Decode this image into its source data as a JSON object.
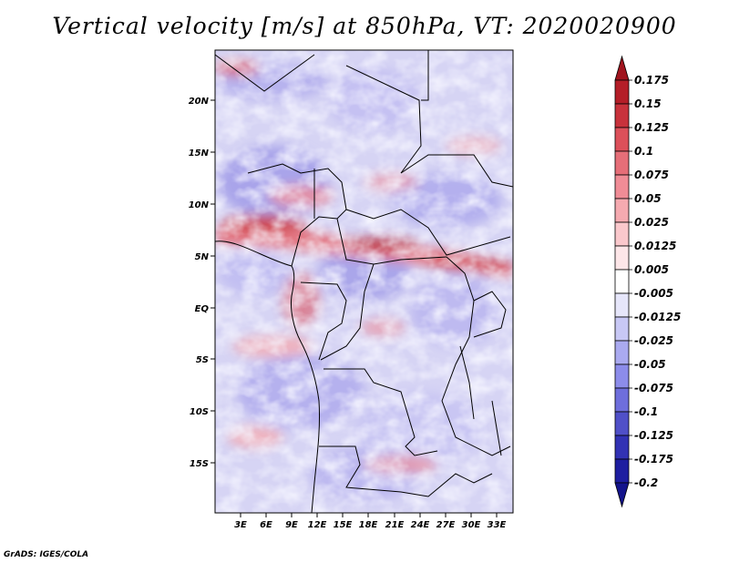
{
  "title": "Vertical velocity [m/s] at 850hPa, VT: 2020020900",
  "credit": "GrADS: IGES/COLA",
  "map": {
    "lon_labels": [
      "3E",
      "6E",
      "9E",
      "12E",
      "15E",
      "18E",
      "21E",
      "24E",
      "27E",
      "30E",
      "33E"
    ],
    "lat_labels": [
      "20N",
      "15N",
      "10N",
      "5N",
      "EQ",
      "5S",
      "10S",
      "15S"
    ]
  },
  "colorbar": {
    "labels": [
      "0.175",
      "0.15",
      "0.125",
      "0.1",
      "0.075",
      "0.05",
      "0.025",
      "0.0125",
      "0.005",
      "-0.005",
      "-0.0125",
      "-0.025",
      "-0.05",
      "-0.075",
      "-0.1",
      "-0.125",
      "-0.175",
      "-0.2"
    ],
    "colors": [
      "#a0141e",
      "#b41e28",
      "#c8323c",
      "#dc505a",
      "#e66e78",
      "#f08c96",
      "#f5aab0",
      "#fac8cc",
      "#fde6e8",
      "#ffffff",
      "#e6e6fa",
      "#c8c8f5",
      "#aaaaf0",
      "#8c8cea",
      "#6e6edc",
      "#5050c8",
      "#3232b4",
      "#1e1ea0",
      "#14148c"
    ]
  }
}
